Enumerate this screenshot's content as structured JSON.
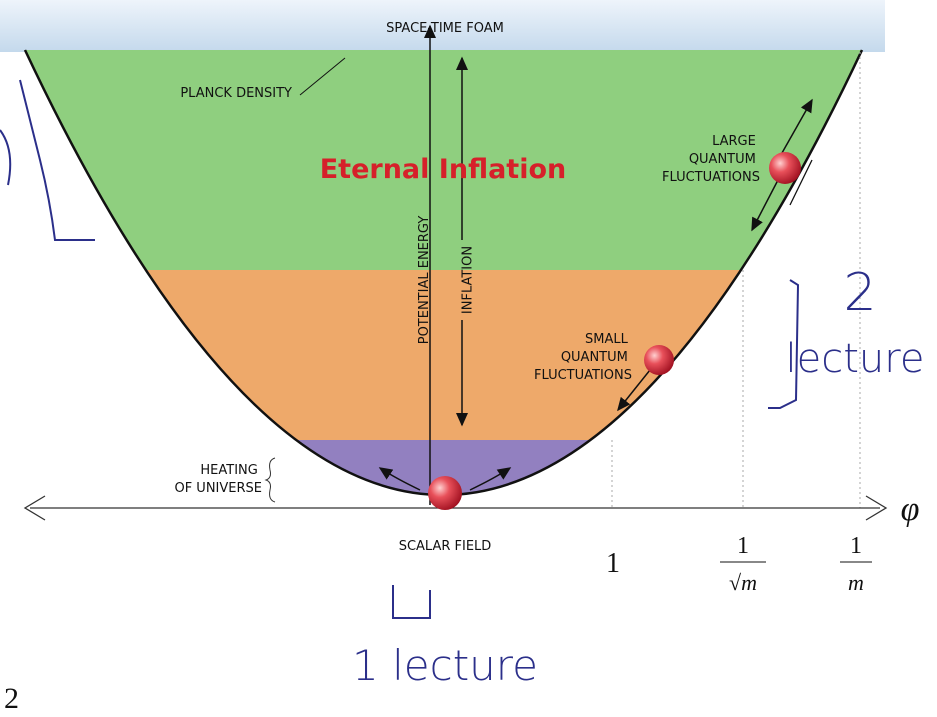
{
  "diagram": {
    "top_label": "SPACE-TIME FOAM",
    "planck_label": "PLANCK DENSITY",
    "title": "Eternal Inflation",
    "vertical_axis_label": "POTENTIAL ENERGY",
    "inflation_label": "INFLATION",
    "large_fluctuations": [
      "LARGE",
      "QUANTUM",
      "FLUCTUATIONS"
    ],
    "small_fluctuations": [
      "SMALL",
      "QUANTUM",
      "FLUCTUATIONS"
    ],
    "heating": [
      "HEATING",
      "OF UNIVERSE"
    ],
    "horizontal_axis_label": "SCALAR FIELD",
    "axis_symbol": "φ",
    "field_marks": [
      {
        "numerator": "1"
      },
      {
        "numerator": "1",
        "denominator": "√m"
      },
      {
        "numerator": "1",
        "denominator": "m"
      }
    ],
    "handwriting": {
      "right_number": "2",
      "right_word": "lecture",
      "bottom": "1 lecture",
      "corner": "2"
    }
  }
}
